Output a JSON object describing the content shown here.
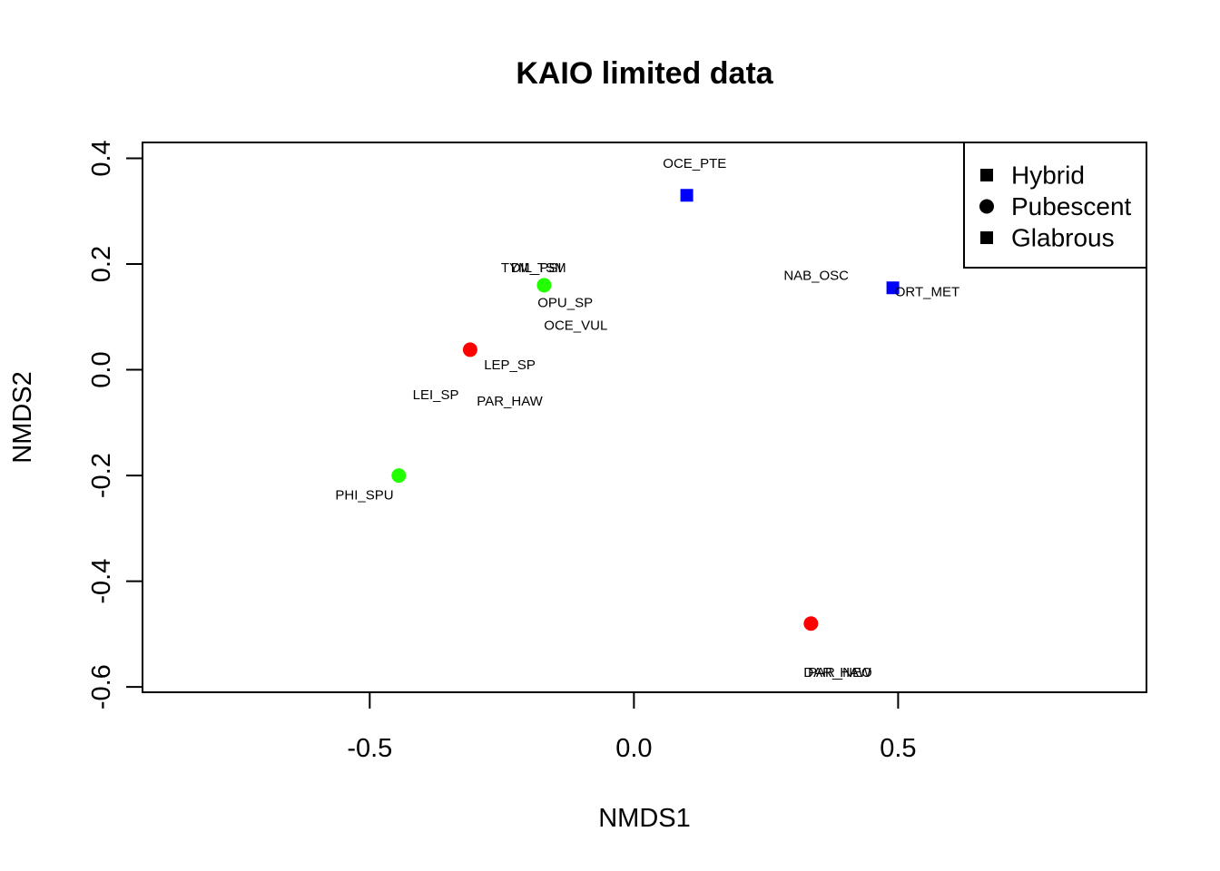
{
  "chart_data": {
    "type": "scatter",
    "title": "KAIO limited data",
    "xlabel": "NMDS1",
    "ylabel": "NMDS2",
    "xlim": [
      -0.93,
      0.97
    ],
    "ylim": [
      -0.61,
      0.43
    ],
    "x_ticks": [
      -0.5,
      0.0,
      0.5
    ],
    "x_tick_labels": [
      "-0.5",
      "0.0",
      "0.5"
    ],
    "y_ticks": [
      -0.6,
      -0.4,
      -0.2,
      0.0,
      0.2,
      0.4
    ],
    "y_tick_labels": [
      "-0.6",
      "-0.4",
      "-0.2",
      "0.0",
      "0.2",
      "0.4"
    ],
    "grid": false,
    "legend": {
      "position": "top-right",
      "entries": [
        {
          "label": "Hybrid",
          "shape": "square"
        },
        {
          "label": "Pubescent",
          "shape": "circle"
        },
        {
          "label": "Glabrous",
          "shape": "square"
        }
      ]
    },
    "sites": [
      {
        "x": 0.1,
        "y": 0.33,
        "shape": "square",
        "color": "#0000FF"
      },
      {
        "x": 0.49,
        "y": 0.155,
        "shape": "square",
        "color": "#0000FF"
      },
      {
        "x": -0.17,
        "y": 0.16,
        "shape": "circle",
        "color": "#22FF00"
      },
      {
        "x": -0.445,
        "y": -0.2,
        "shape": "circle",
        "color": "#22FF00"
      },
      {
        "x": -0.31,
        "y": 0.038,
        "shape": "circle",
        "color": "#FF0000"
      },
      {
        "x": 0.335,
        "y": -0.48,
        "shape": "circle",
        "color": "#FF0000"
      }
    ],
    "species_labels": [
      {
        "label": "OCE_PTE",
        "x": 0.115,
        "y": 0.39
      },
      {
        "label": "NAB_OSC",
        "x": 0.345,
        "y": 0.178
      },
      {
        "label": "ORT_MET",
        "x": 0.555,
        "y": 0.147
      },
      {
        "label": "TYM_TSM",
        "x": -0.19,
        "y": 0.192
      },
      {
        "label": "DIL_PSI",
        "x": -0.185,
        "y": 0.192
      },
      {
        "label": "OPU_SP",
        "x": -0.13,
        "y": 0.126
      },
      {
        "label": "OCE_VUL",
        "x": -0.11,
        "y": 0.083
      },
      {
        "label": "LEP_SP",
        "x": -0.235,
        "y": 0.009
      },
      {
        "label": "LEI_SP",
        "x": -0.375,
        "y": -0.048
      },
      {
        "label": "PAR_HAW",
        "x": -0.235,
        "y": -0.06
      },
      {
        "label": "PHI_SPU",
        "x": -0.51,
        "y": -0.238
      },
      {
        "label": "DAR_HAW",
        "x": 0.385,
        "y": -0.573
      },
      {
        "label": "PAR_NEO",
        "x": 0.39,
        "y": -0.573
      }
    ]
  }
}
